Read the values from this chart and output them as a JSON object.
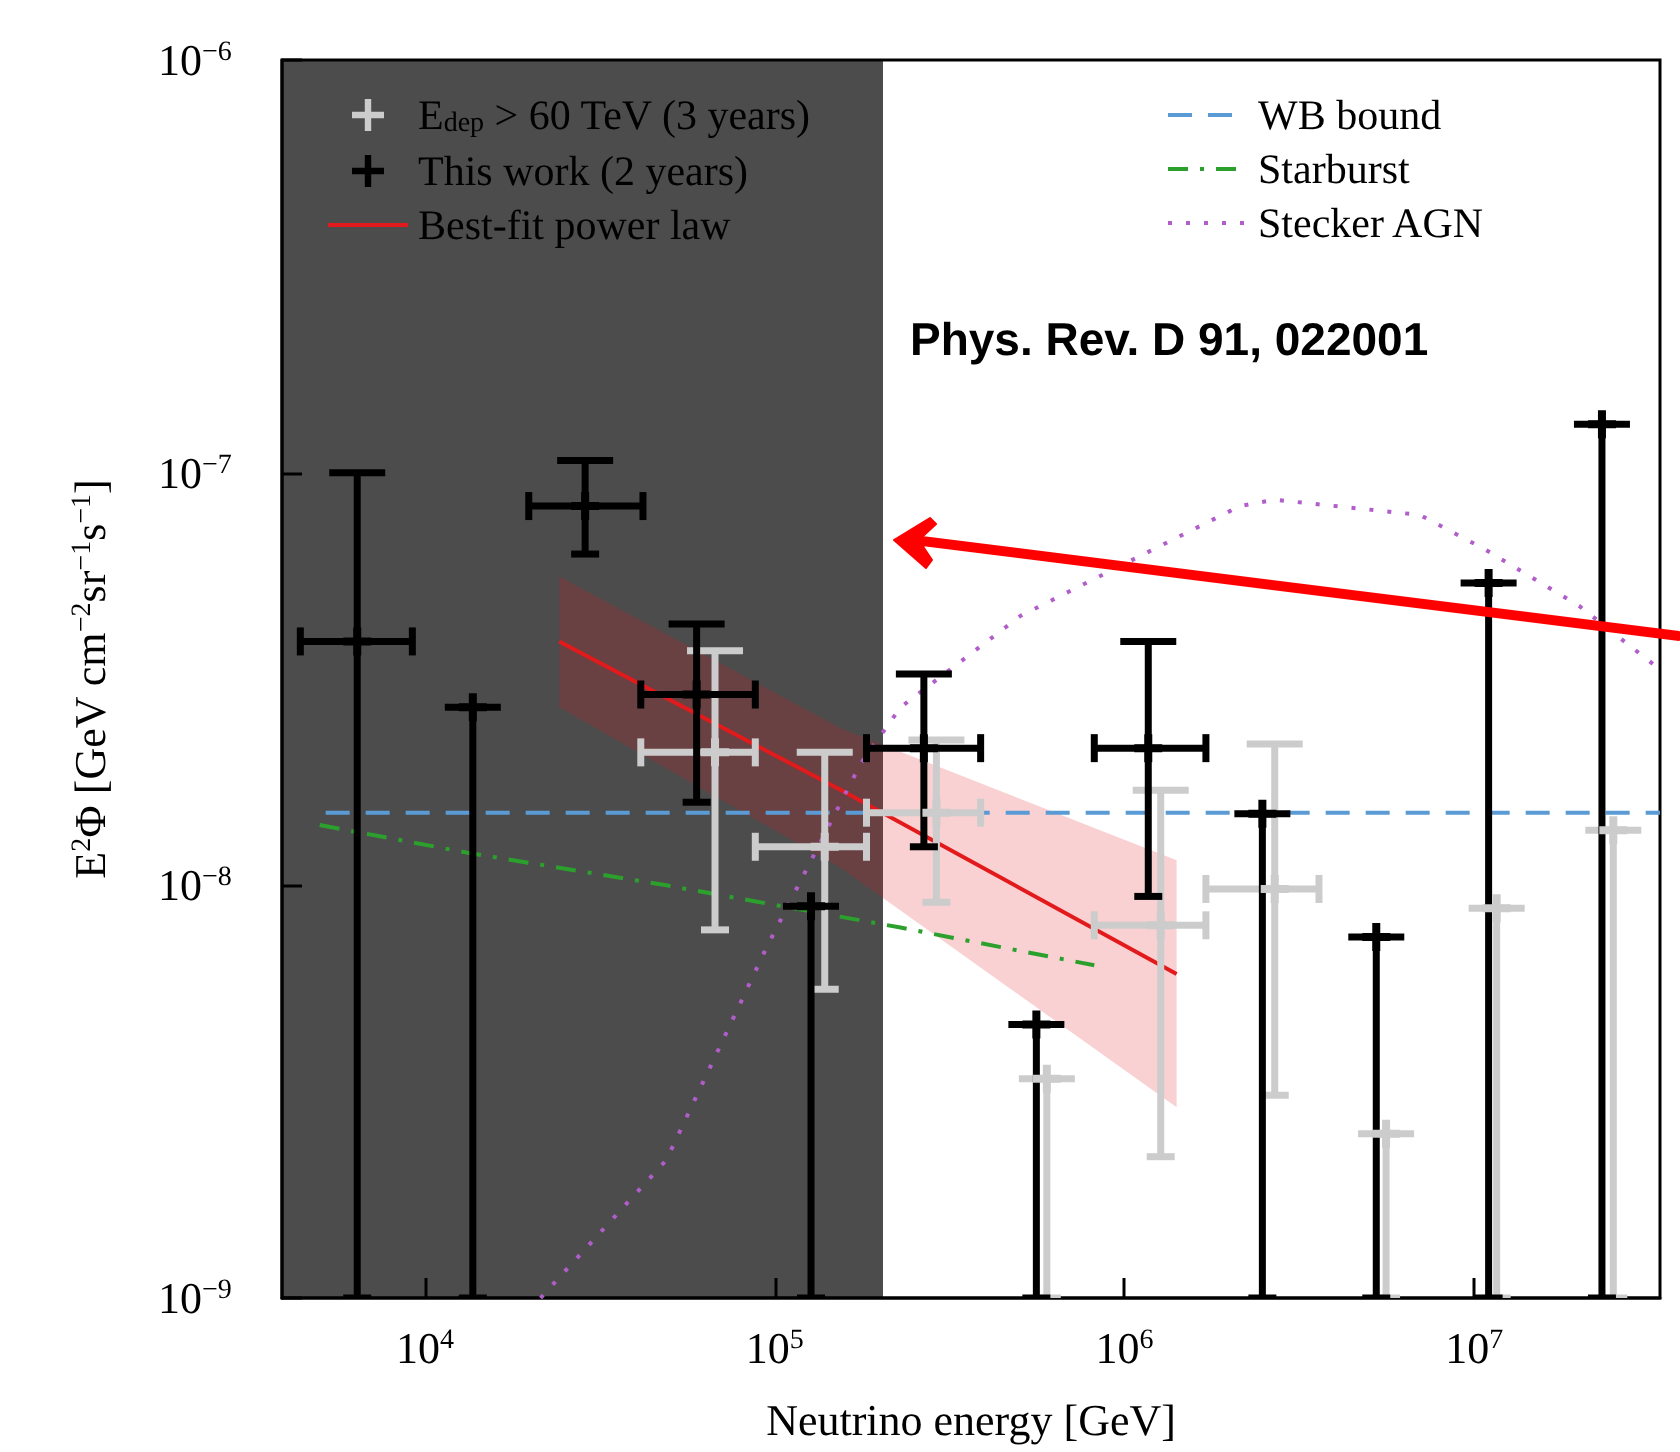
{
  "chart_data": {
    "type": "scatter",
    "xlabel": "Neutrino energy [GeV]",
    "ylabel": "E$^{2}$Φ [GeV cm$^{−2}$sr$^{−1}$s$^{−1}$]",
    "log": "xy",
    "grid": false,
    "legend": "top",
    "xlim": [
      3900,
      34000000
    ],
    "ylim": [
      1e-09,
      1e-06
    ],
    "xticks": [
      {
        "value": 10000,
        "label": "10$^{4}$"
      },
      {
        "value": 100000,
        "label": "10$^{5}$"
      },
      {
        "value": 1000000,
        "label": "10$^{6}$"
      },
      {
        "value": 10000000,
        "label": "10$^{7}$"
      }
    ],
    "yticks": [
      {
        "value": 1e-09,
        "label": "10$^{−9}$"
      },
      {
        "value": 1e-08,
        "label": "10$^{−8}$"
      },
      {
        "value": 1e-07,
        "label": "10$^{−7}$"
      },
      {
        "value": 1e-06,
        "label": "10$^{−6}$"
      }
    ],
    "series": [
      {
        "name": "E$_{dep}$ > 60 TeV (3 years)",
        "marker": "cross",
        "color": "#cccccc",
        "x": [
          67500,
          139000,
          290000,
          600000,
          1270000,
          2690000,
          5600000,
          11600000,
          25000000
        ],
        "values": [
          2.1e-08,
          1.24e-08,
          1.5e-08,
          3.4e-09,
          8e-09,
          9.8e-09,
          2.5e-09,
          8.8e-09,
          1.36e-08
        ],
        "errors": [
          [
            7.8e-09,
            3.7e-08
          ],
          [
            5.6e-09,
            2.1e-08
          ],
          [
            9.1e-09,
            2.25e-08
          ],
          [
            1e-09,
            3.4e-09
          ],
          [
            2.2e-09,
            1.7e-08
          ],
          [
            3.1e-09,
            2.2e-08
          ],
          [
            1e-09,
            2.5e-09
          ],
          [
            1e-09,
            8.8e-09
          ],
          [
            1e-09,
            1.36e-08
          ]
        ],
        "xerrors": [
          [
            41400,
            88000
          ],
          [
            88000,
            183000
          ],
          [
            183000,
            388000
          ],
          null,
          [
            820000,
            1710000
          ],
          [
            1710000,
            3600000
          ],
          null,
          null,
          null
        ]
      },
      {
        "name": "This work (2 years)",
        "marker": "cross",
        "color": "#000000",
        "x": [
          6400,
          13700,
          28700,
          59800,
          127000,
          267000,
          560000,
          1170000,
          2480000,
          5250000,
          11000000,
          23200000
        ],
        "values": [
          3.9e-08,
          2.7e-08,
          8.3e-08,
          2.9e-08,
          8.9e-09,
          2.15e-08,
          4.6e-09,
          2.15e-08,
          1.49e-08,
          7.5e-09,
          5.4e-08,
          1.31e-07
        ],
        "errors": [
          [
            1e-09,
            1e-07
          ],
          [
            1e-09,
            2.7e-08
          ],
          [
            6.35e-08,
            1.07e-07
          ],
          [
            1.59e-08,
            4.3e-08
          ],
          [
            1e-09,
            8.9e-09
          ],
          [
            1.24e-08,
            3.25e-08
          ],
          [
            1e-09,
            4.6e-09
          ],
          [
            9.4e-09,
            3.9e-08
          ],
          [
            1e-09,
            1.49e-08
          ],
          [
            1e-09,
            7.5e-09
          ],
          [
            1e-09,
            5.4e-08
          ],
          [
            1e-09,
            1.31e-07
          ]
        ],
        "xerrors": [
          [
            4400,
            9200
          ],
          null,
          [
            19800,
            42000
          ],
          [
            41400,
            88000
          ],
          null,
          [
            183000,
            388000
          ],
          null,
          [
            820000,
            1710000
          ],
          null,
          null,
          null,
          null
        ]
      },
      {
        "name": "Best-fit power law",
        "type": "line",
        "marker": "none",
        "line_style": "solid",
        "color": "#e31a1c",
        "x": [
          24200,
          155000,
          1410000
        ],
        "values": [
          3.9e-08,
          1.7e-08,
          6.1e-09
        ],
        "lower": [
          2.7e-08,
          1.1e-08,
          2.9e-09
        ],
        "upper": [
          5.6e-08,
          2.4e-08,
          1.15e-08
        ]
      },
      {
        "name": "WB bound",
        "type": "line",
        "marker": "none",
        "line_style": "dashed",
        "color": "#5b9bd5",
        "x": [
          5200,
          34000000
        ],
        "values": [
          1.5e-08,
          1.5e-08
        ]
      },
      {
        "name": "Starburst",
        "type": "line",
        "marker": "none",
        "line_style": "dashdot",
        "color": "#2ca02c",
        "x": [
          5000,
          13200,
          49000,
          229000,
          820000
        ],
        "values": [
          1.4e-08,
          1.2e-08,
          1e-08,
          7.9e-09,
          6.4e-09
        ]
      },
      {
        "name": "Stecker AGN",
        "type": "line",
        "marker": "none",
        "line_style": "dotted",
        "color": "#b15ecb",
        "x": [
          21400,
          49000,
          95000,
          176000,
          229000,
          505000,
          2140000,
          2690000,
          7000000,
          10800000,
          20000000,
          33000000
        ],
        "values": [
          1e-09,
          2.16e-09,
          7.1e-09,
          1.97e-08,
          2.7e-08,
          4.5e-08,
          8.3e-08,
          8.6e-08,
          7.9e-08,
          6.5e-08,
          4.75e-08,
          3.4e-08
        ]
      }
    ],
    "bands": [
      {
        "axis": "x",
        "from": 3900,
        "to": 204000,
        "color": "#000000"
      }
    ],
    "annotations": [
      "Phys. Rev. D 91, 022001"
    ]
  }
}
